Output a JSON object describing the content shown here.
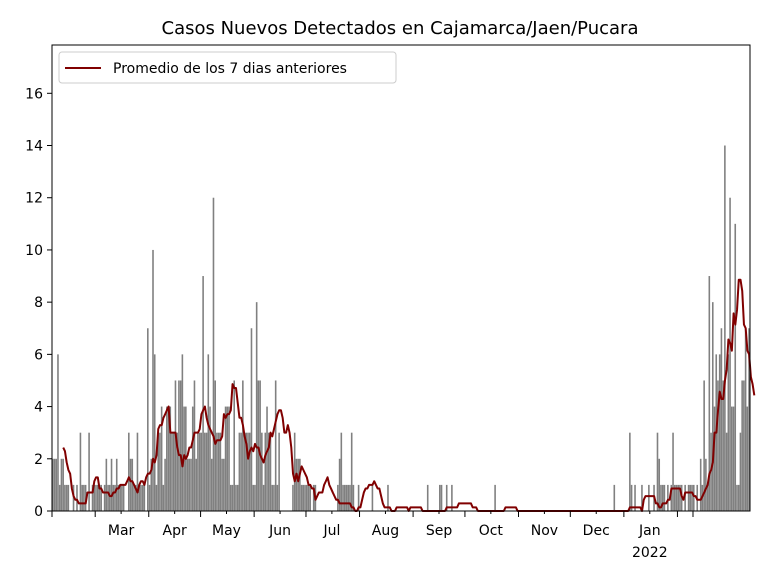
{
  "chart_data": {
    "type": "bar",
    "title": "Casos Nuevos Detectados en Cajamarca/Jaen/Pucara",
    "xlabel": "",
    "ylabel": "",
    "ylim": [
      0,
      17.85
    ],
    "y_ticks": [
      0,
      2,
      4,
      6,
      8,
      10,
      12,
      14,
      16
    ],
    "x_ticks": [
      {
        "label": "Mar",
        "sub": ""
      },
      {
        "label": "Apr",
        "sub": ""
      },
      {
        "label": "May",
        "sub": ""
      },
      {
        "label": "Jun",
        "sub": ""
      },
      {
        "label": "Jul",
        "sub": ""
      },
      {
        "label": "Aug",
        "sub": ""
      },
      {
        "label": "Sep",
        "sub": ""
      },
      {
        "label": "Oct",
        "sub": ""
      },
      {
        "label": "Nov",
        "sub": ""
      },
      {
        "label": "Dec",
        "sub": ""
      },
      {
        "label": "Jan",
        "sub": "2022"
      }
    ],
    "grid": false,
    "legend_position": "top-left",
    "series": [
      {
        "type": "bar",
        "color": "#808080",
        "values": [
          2,
          2,
          2,
          6,
          1,
          2,
          2,
          1,
          1,
          1,
          0,
          0,
          1,
          0,
          1,
          0,
          3,
          1,
          1,
          1,
          0,
          3,
          0,
          1,
          1,
          1,
          1,
          1,
          1,
          0,
          1,
          2,
          1,
          1,
          2,
          1,
          1,
          2,
          1,
          1,
          1,
          1,
          0,
          0,
          3,
          2,
          2,
          1,
          1,
          3,
          1,
          1,
          1,
          1,
          0,
          7,
          1,
          2,
          10,
          6,
          1,
          3,
          3,
          4,
          1,
          2,
          4,
          4,
          4,
          3,
          3,
          5,
          3,
          5,
          5,
          6,
          4,
          4,
          2,
          2,
          2,
          4,
          5,
          2,
          3,
          3,
          3,
          9,
          3,
          3,
          6,
          4,
          2,
          12,
          5,
          3,
          3,
          3,
          2,
          2,
          4,
          4,
          4,
          1,
          1,
          5,
          1,
          1,
          3,
          3,
          5,
          3,
          3,
          3,
          3,
          7,
          1,
          1,
          8,
          5,
          5,
          3,
          1,
          3,
          4,
          3,
          3,
          1,
          1,
          5,
          1,
          3,
          0,
          0,
          0,
          0,
          0,
          0,
          0,
          1,
          3,
          2,
          2,
          2,
          1,
          1,
          1,
          1,
          1,
          1,
          0,
          1,
          1,
          0,
          0,
          0,
          0,
          0,
          0,
          0,
          0,
          0,
          0,
          0,
          0,
          1,
          2,
          3,
          1,
          1,
          1,
          1,
          1,
          3,
          1,
          0,
          0,
          1,
          0,
          0,
          0,
          0,
          0,
          0,
          0,
          1,
          0,
          0,
          0,
          0,
          0,
          0,
          0,
          0,
          1,
          0,
          0,
          0,
          0,
          0,
          0,
          0,
          0,
          0,
          0,
          0,
          0,
          0,
          0,
          0,
          0,
          0,
          0,
          0,
          0,
          0,
          0,
          1,
          0,
          0,
          0,
          0,
          0,
          0,
          1,
          1,
          0,
          0,
          1,
          0,
          0,
          1,
          0,
          0,
          0,
          0,
          0,
          0,
          0,
          0,
          0,
          0,
          0,
          0,
          0,
          0,
          0,
          0,
          0,
          0,
          0,
          0,
          0,
          0,
          0,
          0,
          1,
          0,
          0,
          0,
          0,
          0,
          0,
          0,
          0,
          0,
          0,
          0,
          0,
          0,
          0,
          0,
          0,
          0,
          0,
          0,
          0,
          0,
          0,
          0,
          0,
          0,
          0,
          0,
          0,
          0,
          0,
          0,
          0,
          0,
          0,
          0,
          0,
          0,
          0,
          0,
          0,
          0,
          0,
          0,
          0,
          0,
          0,
          0,
          0,
          0,
          0,
          0,
          0,
          0,
          0,
          0,
          0,
          0,
          0,
          0,
          0,
          0,
          0,
          0,
          0,
          0,
          0,
          0,
          0,
          1,
          0,
          0,
          0,
          0,
          0,
          0,
          0,
          0,
          3,
          1,
          0,
          1,
          0,
          0,
          0,
          1,
          0,
          0,
          0,
          1,
          0,
          0,
          1,
          0,
          3,
          2,
          1,
          1,
          1,
          0,
          1,
          0,
          1,
          3,
          1,
          1,
          1,
          1,
          1,
          0,
          1,
          0,
          1,
          1,
          1,
          1,
          0,
          1,
          0,
          2,
          1,
          5,
          2,
          1,
          9,
          3,
          8,
          4,
          6,
          5,
          6,
          7,
          5,
          14,
          3,
          6,
          12,
          4,
          4,
          11,
          1,
          1,
          3,
          5,
          5,
          7,
          4,
          7
        ]
      },
      {
        "type": "line",
        "name": "Promedio de los 7 dias anteriores",
        "color": "#800000",
        "values": [
          null,
          null,
          null,
          null,
          null,
          null,
          2.43,
          2.29,
          1.86,
          1.57,
          1.43,
          0.86,
          0.57,
          0.43,
          0.43,
          0.29,
          0.29,
          0.29,
          0.29,
          0.29,
          0.71,
          0.71,
          0.71,
          0.71,
          1.14,
          1.29,
          1.29,
          0.86,
          0.86,
          0.71,
          0.71,
          0.71,
          0.71,
          0.57,
          0.57,
          0.71,
          0.71,
          0.86,
          0.86,
          1.0,
          1.0,
          1.0,
          1.0,
          1.14,
          1.29,
          1.14,
          1.14,
          1.0,
          0.86,
          0.71,
          1.0,
          1.14,
          1.14,
          1.0,
          1.29,
          1.43,
          1.43,
          1.57,
          2.0,
          1.86,
          2.14,
          3.14,
          3.29,
          3.29,
          3.57,
          3.71,
          3.86,
          4.0,
          3.0,
          3.0,
          3.0,
          3.0,
          2.43,
          2.14,
          2.14,
          1.71,
          2.14,
          2.0,
          2.14,
          2.43,
          2.43,
          2.71,
          3.0,
          3.0,
          3.0,
          3.14,
          3.71,
          3.86,
          4.0,
          3.57,
          3.29,
          3.14,
          3.0,
          2.86,
          2.57,
          2.71,
          2.71,
          2.71,
          2.86,
          3.71,
          3.57,
          3.71,
          3.71,
          3.86,
          4.86,
          4.71,
          4.71,
          4.14,
          3.57,
          3.57,
          3.29,
          2.86,
          2.57,
          2.0,
          2.29,
          2.43,
          2.29,
          2.57,
          2.43,
          2.43,
          2.14,
          2.0,
          1.86,
          2.14,
          2.29,
          2.43,
          3.0,
          2.86,
          3.14,
          3.43,
          3.71,
          3.86,
          3.86,
          3.57,
          3.0,
          3.0,
          3.29,
          3.0,
          2.43,
          1.43,
          1.14,
          1.43,
          1.14,
          1.43,
          1.71,
          1.57,
          1.43,
          1.29,
          1.0,
          1.0,
          0.86,
          0.86,
          0.43,
          0.57,
          0.71,
          0.71,
          0.71,
          1.0,
          1.14,
          1.29,
          1.0,
          0.86,
          0.71,
          0.57,
          0.43,
          0.43,
          0.29,
          0.29,
          0.29,
          0.29,
          0.29,
          0.29,
          0.29,
          0.14,
          0.14,
          0.0,
          0.0,
          0.14,
          0.14,
          0.43,
          0.71,
          0.86,
          0.86,
          1.0,
          1.0,
          1.0,
          1.14,
          1.0,
          0.86,
          0.86,
          0.57,
          0.29,
          0.14,
          0.14,
          0.14,
          0.14,
          0.0,
          0.0,
          0.0,
          0.14,
          0.14,
          0.14,
          0.14,
          0.14,
          0.14,
          0.14,
          0.0,
          0.14,
          0.14,
          0.14,
          0.14,
          0.14,
          0.14,
          0.14,
          0.0,
          0.0,
          0.0,
          0.0,
          0.0,
          0.0,
          0.0,
          0.0,
          0.0,
          0.0,
          0.0,
          0.0,
          0.0,
          0.0,
          0.14,
          0.14,
          0.14,
          0.14,
          0.14,
          0.14,
          0.14,
          0.29,
          0.29,
          0.29,
          0.29,
          0.29,
          0.29,
          0.29,
          0.29,
          0.14,
          0.14,
          0.14,
          0.0,
          0.0,
          0.0,
          0.0,
          0.0,
          0.0,
          0.0,
          0.0,
          0.0,
          0.0,
          0.0,
          0.0,
          0.0,
          0.0,
          0.0,
          0.0,
          0.14,
          0.14,
          0.14,
          0.14,
          0.14,
          0.14,
          0.14,
          0.0,
          0.0,
          0.0,
          0.0,
          0.0,
          0.0,
          0.0,
          0.0,
          0.0,
          0.0,
          0.0,
          0.0,
          0.0,
          0.0,
          0.0,
          0.0,
          0.0,
          0.0,
          0.0,
          0.0,
          0.0,
          0.0,
          0.0,
          0.0,
          0.0,
          0.0,
          0.0,
          0.0,
          0.0,
          0.0,
          0.0,
          0.0,
          0.0,
          0.0,
          0.0,
          0.0,
          0.0,
          0.0,
          0.0,
          0.0,
          0.0,
          0.0,
          0.0,
          0.0,
          0.0,
          0.0,
          0.0,
          0.0,
          0.0,
          0.0,
          0.0,
          0.0,
          0.0,
          0.0,
          0.0,
          0.0,
          0.0,
          0.0,
          0.0,
          0.0,
          0.0,
          0.0,
          0.0,
          0.0,
          0.0,
          0.14,
          0.14,
          0.14,
          0.14,
          0.14,
          0.14,
          0.14,
          0.0,
          0.43,
          0.57,
          0.57,
          0.57,
          0.57,
          0.57,
          0.57,
          0.29,
          0.29,
          0.14,
          0.14,
          0.29,
          0.29,
          0.29,
          0.43,
          0.43,
          0.86,
          0.86,
          0.86,
          0.86,
          0.86,
          0.86,
          0.57,
          0.43,
          0.71,
          0.71,
          0.71,
          0.71,
          0.71,
          0.57,
          0.57,
          0.43,
          0.43,
          0.43,
          0.57,
          0.71,
          0.86,
          1.0,
          1.43,
          1.57,
          1.86,
          3.0,
          3.0,
          3.86,
          4.57,
          4.29,
          4.29,
          5.0,
          5.43,
          6.57,
          6.43,
          6.14,
          7.57,
          7.14,
          7.71,
          8.86,
          8.86,
          8.43,
          7.14,
          7.0,
          6.14,
          6.0,
          5.14,
          4.86,
          4.43
        ]
      }
    ]
  }
}
